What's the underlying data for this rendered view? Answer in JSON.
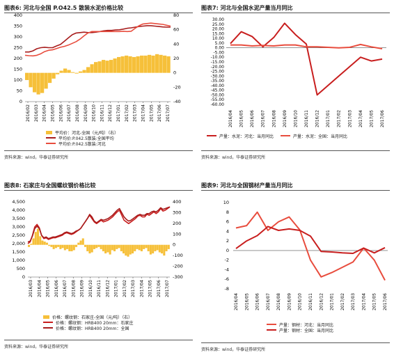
{
  "colors": {
    "gold": "#f6c03a",
    "red": "#c81e1e",
    "dark_red": "#a71c1c",
    "light_red": "#e84c3d",
    "axis": "#555555"
  },
  "panels": [
    {
      "title": "图表6:   河北与全国 P.O42.5 散装水泥价格比较",
      "source": "资料来源：wind，华泰证券研究所",
      "legend": [
        "平均价：河北-全国（元/吨）（右）",
        "平均价:P.042.5散装:全国平均",
        "平均价:P.042.5散装:河北"
      ]
    },
    {
      "title": "图表7:   河北与全国水泥产量当月同比",
      "source": "资料来源：wind，华泰证券研究所",
      "legend": [
        "产量：水泥：河北：当月同比",
        "产量：水泥：全国：当月同比"
      ]
    },
    {
      "title": "图表8:   石家庄与全国螺纹钢价格比较",
      "source": "资料来源：wind，华泰证券研究所",
      "legend": [
        "价格：螺纹钢：石家庄-全国（元/吨）（右）",
        "价格：螺纹钢：HRB400  20mm：石家庄",
        "价格：螺纹钢：HRB400  20mm：全国"
      ]
    },
    {
      "title": "图表9:   河北与全国钢材产量当月同比",
      "source": "资料来源：wind，华泰证券研究所",
      "legend": [
        "产量：钢材：河北：当月同比",
        "产量：钢材：全国：当月同比"
      ]
    }
  ],
  "chart_data": [
    {
      "type": "line",
      "x_ticks": [
        "2016/02",
        "2016/03",
        "2016/04",
        "2016/05",
        "2016/06",
        "2016/07",
        "2016/08",
        "2016/09",
        "2016/10",
        "2016/11",
        "2016/12",
        "2017/01",
        "2017/02",
        "2017/03",
        "2017/04",
        "2017/05",
        "2017/06",
        "2017/07"
      ],
      "y_left": {
        "ticks": [
          0,
          50,
          100,
          150,
          200,
          250,
          300,
          350,
          400
        ],
        "range": [
          0,
          400
        ]
      },
      "y_right": {
        "ticks": [
          -40,
          -20,
          0,
          20,
          40,
          60,
          80
        ],
        "range": [
          -40,
          80
        ]
      },
      "bars_axis": "right",
      "bars_values": [
        -10,
        -20,
        -27,
        -30,
        -28,
        -22,
        -14,
        -8,
        -2,
        3,
        6,
        4,
        1,
        -1,
        2,
        4,
        8,
        12,
        15,
        16,
        18,
        17,
        18,
        20,
        22,
        23,
        24,
        23,
        22,
        23,
        24,
        24,
        25,
        24,
        26,
        25,
        24,
        23
      ],
      "series": [
        {
          "name": "平均价:P.042.5散装:全国平均",
          "axis": "left",
          "values": [
            230,
            230,
            235,
            245,
            250,
            252,
            250,
            250,
            258,
            265,
            280,
            295,
            310,
            318,
            320,
            322,
            320,
            320,
            322,
            325,
            328,
            330,
            330,
            332,
            333,
            336,
            340,
            342,
            345,
            348,
            350,
            352,
            352,
            350,
            348,
            346,
            345,
            345
          ]
        },
        {
          "name": "平均价:P.042.5散装:河北",
          "axis": "left",
          "values": [
            215,
            213,
            212,
            215,
            222,
            232,
            238,
            240,
            246,
            252,
            256,
            262,
            270,
            278,
            290,
            305,
            318,
            325,
            325,
            325,
            325,
            325,
            325,
            325,
            325,
            326,
            325,
            326,
            340,
            352,
            360,
            362,
            364,
            362,
            360,
            358,
            354,
            350
          ]
        }
      ]
    },
    {
      "type": "line",
      "x_ticks": [
        "2016/04",
        "2016/05",
        "2016/06",
        "2016/07",
        "2016/08",
        "2016/09",
        "2016/10",
        "2016/11",
        "2016/12",
        "2017/01",
        "2017/02",
        "2017/03",
        "2017/04",
        "2017/05",
        "2017/06"
      ],
      "y_ticks": [
        30,
        25,
        20,
        15,
        10,
        5,
        0,
        -5,
        -10,
        -15,
        -20,
        -25,
        -30,
        -35,
        -40,
        -45,
        -50,
        -55,
        -60
      ],
      "y_tick_labels": [
        "30.00",
        "25.00",
        "20.00",
        "15.00",
        "10.00",
        "5.00",
        "0.00",
        "-5.00",
        "-10.00",
        "-15.00",
        "-20.00",
        "-25.00",
        "-30.00",
        "-35.00",
        "-40.00",
        "-45.00",
        "-50.00",
        "-55.00",
        "-60.00"
      ],
      "ylim": [
        -60,
        30
      ],
      "series": [
        {
          "name": "产量：水泥：河北：当月同比",
          "values": [
            4.5,
            17,
            12,
            1,
            11,
            26,
            14,
            4,
            -50,
            -40,
            -30,
            -20,
            -10,
            -14,
            -12
          ]
        },
        {
          "name": "产量：水泥：全国：当月同比",
          "values": [
            3,
            3,
            2,
            2.5,
            2,
            3,
            3,
            1,
            1,
            0.5,
            0,
            0.5,
            3.5,
            1,
            -1
          ]
        }
      ]
    },
    {
      "type": "line",
      "x_ticks": [
        "2016/03",
        "2016/04",
        "2016/05",
        "2016/06",
        "2016/07",
        "2016/08",
        "2016/09",
        "2016/10",
        "2016/11",
        "2016/12",
        "2017/01",
        "2017/02",
        "2017/03",
        "2017/04",
        "2017/05",
        "2017/06",
        "2017/07"
      ],
      "y_left": {
        "ticks": [
          0,
          500,
          1000,
          1500,
          2000,
          2500,
          3000,
          3500,
          4000,
          4500
        ],
        "tick_labels": [
          "0",
          "500",
          "1,000",
          "1,500",
          "2,000",
          "2,500",
          "3,000",
          "3,500",
          "4,000",
          "4,500"
        ],
        "range": [
          0,
          4500
        ]
      },
      "y_right": {
        "ticks": [
          -300,
          -200,
          -100,
          0,
          100,
          200,
          300,
          400
        ],
        "range": [
          -300,
          400
        ]
      },
      "bars_axis": "right",
      "bars_values": [
        -20,
        10,
        60,
        120,
        150,
        80,
        40,
        30,
        20,
        -10,
        -20,
        -40,
        -30,
        -20,
        -40,
        -30,
        -50,
        -40,
        -60,
        -60,
        -50,
        -20,
        20,
        40,
        60,
        -20,
        -60,
        -80,
        -70,
        -40,
        -30,
        -20,
        -40,
        -60,
        -80,
        -70,
        -90,
        -50,
        -60,
        -40,
        -30,
        -60,
        -80,
        -100,
        -110,
        -90,
        -80,
        -60,
        -40,
        -50,
        -60,
        -40,
        -30,
        -60,
        -90,
        -80,
        -60,
        -50,
        -70,
        -80,
        -100,
        -60,
        -40
      ],
      "series": [
        {
          "name": "价格：螺纹钢：HRB400  20mm：石家庄",
          "axis": "left",
          "values": [
            2000,
            2100,
            2500,
            3000,
            3150,
            2950,
            2500,
            2300,
            2350,
            2250,
            2300,
            2350,
            2350,
            2400,
            2450,
            2500,
            2600,
            2650,
            2600,
            2550,
            2600,
            2700,
            2800,
            2900,
            3100,
            3300,
            3500,
            3700,
            3500,
            3300,
            3200,
            3300,
            3400,
            3300,
            3350,
            3400,
            3500,
            3600,
            3750,
            3900,
            4000,
            3700,
            3400,
            3300,
            3200,
            3300,
            3400,
            3500,
            3650,
            3700,
            3600,
            3600,
            3750,
            3700,
            3800,
            3900,
            3800,
            3900,
            4100,
            3950,
            4000,
            4100,
            4200
          ]
        },
        {
          "name": "价格：螺纹钢：HRB400  20mm：全国",
          "axis": "left",
          "values": [
            2100,
            2150,
            2450,
            2900,
            3050,
            2900,
            2500,
            2350,
            2400,
            2300,
            2350,
            2400,
            2400,
            2450,
            2500,
            2550,
            2650,
            2700,
            2650,
            2600,
            2650,
            2750,
            2800,
            2900,
            3100,
            3300,
            3500,
            3750,
            3600,
            3350,
            3250,
            3350,
            3450,
            3400,
            3450,
            3500,
            3600,
            3700,
            3850,
            4000,
            4100,
            3850,
            3600,
            3450,
            3350,
            3400,
            3500,
            3600,
            3700,
            3750,
            3700,
            3700,
            3800,
            3800,
            3900,
            3950,
            3900,
            4000,
            4150,
            4050,
            4100,
            4150,
            4200
          ]
        }
      ]
    },
    {
      "type": "line",
      "x_ticks": [
        "2016/04",
        "2016/05",
        "2016/06",
        "2016/07",
        "2016/08",
        "2016/09",
        "2016/10",
        "2016/11",
        "2016/12",
        "2017/01",
        "2017/02",
        "2017/03",
        "2017/04",
        "2017/05",
        "2017/06"
      ],
      "y_ticks": [
        10,
        8,
        6,
        4,
        2,
        0,
        -2,
        -4,
        -6,
        -8
      ],
      "ylim": [
        -8,
        10
      ],
      "series": [
        {
          "name": "产量：钢材：河北：当月同比",
          "values": [
            4.7,
            5.2,
            8,
            4.2,
            6,
            7,
            4.3,
            -2,
            -5.5,
            -4.6,
            -3.5,
            -2.4,
            0.5,
            -2,
            -6.2
          ]
        },
        {
          "name": "产量：钢材：全国：当月同比",
          "values": [
            0.4,
            2,
            3.1,
            5,
            4.2,
            4.5,
            4.2,
            3,
            -0.2,
            -0.3,
            -0.5,
            -0.6,
            0.5,
            -0.5,
            0.6
          ]
        }
      ]
    }
  ]
}
